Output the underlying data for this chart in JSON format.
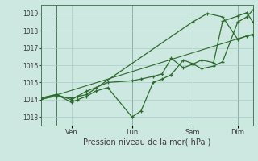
{
  "bg_color": "#cce8e0",
  "grid_color": "#aaccc4",
  "line_color": "#2d6a2d",
  "xlabel": "Pression niveau de la mer( hPa )",
  "ylim": [
    1012.5,
    1019.5
  ],
  "yticks": [
    1013,
    1014,
    1015,
    1016,
    1017,
    1018,
    1019
  ],
  "day_labels": [
    "Ven",
    "Lun",
    "Sam",
    "Dim"
  ],
  "day_positions": [
    1,
    3,
    5,
    6.5
  ],
  "vline_positions": [
    0.5,
    3,
    5,
    6.5
  ],
  "series1_x": [
    0.0,
    0.5,
    1.0,
    1.2,
    1.5,
    1.8,
    2.2,
    3.0,
    3.3,
    3.7,
    4.0,
    4.3,
    4.7,
    5.0,
    5.3,
    5.7,
    6.0,
    6.5,
    6.8,
    7.0
  ],
  "series1_y": [
    1014.1,
    1014.3,
    1013.85,
    1014.0,
    1014.2,
    1014.5,
    1014.7,
    1013.0,
    1013.35,
    1015.0,
    1015.2,
    1015.45,
    1016.3,
    1016.1,
    1015.8,
    1015.95,
    1016.2,
    1018.5,
    1018.8,
    1019.2
  ],
  "series2_x": [
    0.0,
    0.5,
    1.0,
    1.2,
    1.5,
    1.8,
    2.2,
    3.0,
    3.3,
    3.7,
    4.0,
    4.3,
    4.7,
    5.0,
    5.3,
    5.7,
    6.0,
    6.5,
    6.8,
    7.0
  ],
  "series2_y": [
    1014.1,
    1014.3,
    1014.0,
    1014.2,
    1014.5,
    1014.7,
    1015.0,
    1015.1,
    1015.2,
    1015.35,
    1015.5,
    1016.4,
    1015.85,
    1016.05,
    1016.3,
    1016.15,
    1018.55,
    1018.85,
    1019.05,
    1018.5
  ],
  "series3_x": [
    0.0,
    7.0
  ],
  "series3_y": [
    1014.0,
    1017.8
  ],
  "series4_x": [
    0.0,
    0.5,
    1.0,
    1.5,
    5.0,
    5.5,
    6.0,
    6.5,
    6.8,
    7.0
  ],
  "series4_y": [
    1014.05,
    1014.2,
    1014.1,
    1014.3,
    1018.5,
    1019.0,
    1018.8,
    1017.5,
    1017.7,
    1017.75
  ],
  "xlim": [
    0.0,
    7.0
  ]
}
